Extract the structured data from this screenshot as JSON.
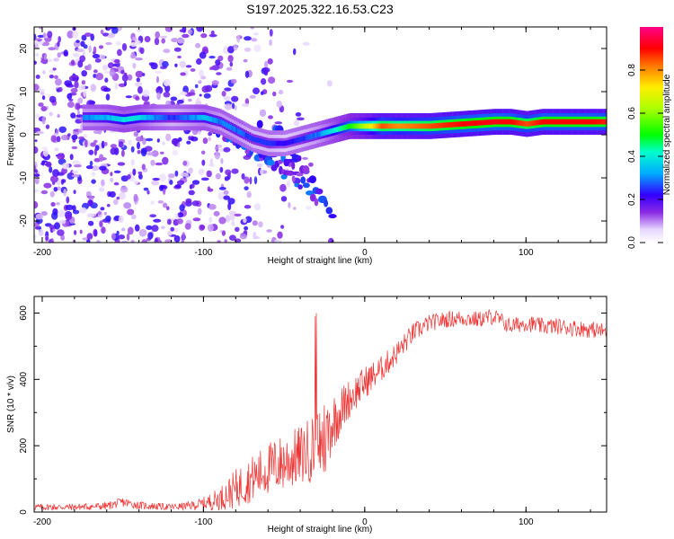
{
  "title": "S197.2025.322.16.53.C23",
  "chart_data": [
    {
      "type": "heatmap",
      "name": "spectrogram",
      "xlabel": "Height of straight line (km)",
      "ylabel": "Frequency (Hz)",
      "xlim": [
        -205,
        150
      ],
      "ylim": [
        -25,
        25
      ],
      "x_ticks": [
        -200,
        -100,
        0,
        100
      ],
      "y_ticks": [
        -20,
        -10,
        0,
        10,
        20
      ],
      "ridge": {
        "x": [
          -175,
          -160,
          -150,
          -140,
          -130,
          -120,
          -110,
          -100,
          -90,
          -80,
          -70,
          -60,
          -50,
          -40,
          -30,
          -20,
          -10,
          0,
          10,
          20,
          40,
          60,
          80,
          90,
          100,
          110,
          120,
          140,
          150
        ],
        "freq": [
          4,
          4,
          3.5,
          4,
          4,
          4,
          4,
          4,
          3,
          1,
          -1,
          -2,
          -2,
          -1,
          0,
          1,
          2,
          2,
          2,
          2,
          2,
          2.5,
          3,
          3,
          2.5,
          3,
          3,
          3,
          3
        ],
        "amplitude": [
          0.3,
          0.35,
          0.4,
          0.38,
          0.3,
          0.25,
          0.3,
          0.35,
          0.3,
          0.3,
          0.25,
          0.25,
          0.22,
          0.25,
          0.3,
          0.4,
          0.5,
          0.65,
          0.85,
          0.8,
          0.85,
          0.9,
          0.92,
          0.9,
          0.85,
          0.9,
          0.9,
          0.9,
          0.88
        ]
      },
      "colorbar": {
        "label": "Normalized spectral amplitude",
        "range": [
          0.0,
          1.0
        ],
        "ticks": [
          0.0,
          0.2,
          0.4,
          0.6,
          0.8
        ],
        "tick_labels": [
          "0.0",
          "0.2",
          "0.4",
          "0.6",
          "0.8"
        ]
      }
    },
    {
      "type": "line",
      "name": "snr",
      "xlabel": "Height of straight line (km)",
      "ylabel": "SNR (10 * v/v)",
      "xlim": [
        -205,
        150
      ],
      "ylim": [
        0,
        650
      ],
      "x_ticks": [
        -200,
        -100,
        0,
        100
      ],
      "y_ticks": [
        0,
        200,
        400,
        600
      ],
      "series": [
        {
          "name": "SNR",
          "color": "#ee3333",
          "x": [
            -205,
            -180,
            -160,
            -150,
            -140,
            -120,
            -110,
            -100,
            -90,
            -80,
            -70,
            -60,
            -50,
            -40,
            -30,
            -25,
            -20,
            -10,
            0,
            10,
            20,
            30,
            40,
            50,
            60,
            70,
            80,
            90,
            100,
            110,
            120,
            130,
            140,
            150
          ],
          "y": [
            15,
            15,
            18,
            30,
            20,
            15,
            18,
            25,
            40,
            70,
            100,
            130,
            150,
            170,
            200,
            220,
            270,
            340,
            390,
            430,
            480,
            540,
            570,
            580,
            585,
            580,
            590,
            560,
            570,
            560,
            560,
            555,
            550,
            545
          ],
          "noise": [
            10,
            10,
            12,
            15,
            12,
            10,
            12,
            20,
            35,
            60,
            70,
            80,
            90,
            90,
            110,
            130,
            90,
            60,
            50,
            40,
            35,
            30,
            25,
            25,
            25,
            25,
            25,
            25,
            25,
            25,
            25,
            25,
            25,
            25
          ]
        }
      ]
    }
  ]
}
